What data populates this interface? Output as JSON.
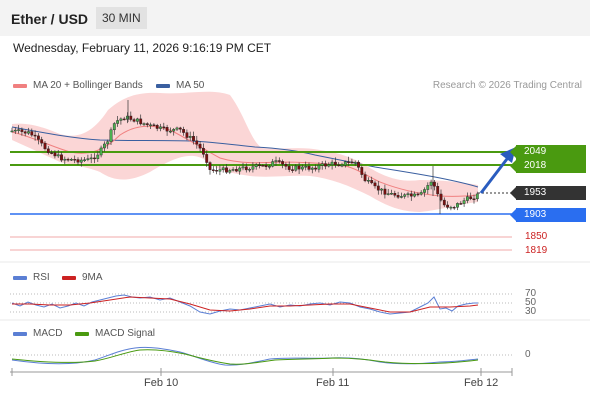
{
  "header": {
    "title": "Ether / USD",
    "timeframe": "30 MIN"
  },
  "datetime": "Wednesday, February 11, 2026 9:16:19 PM CET",
  "legend": {
    "ma20_label": "MA 20 + Bollinger Bands",
    "ma50_label": "MA 50",
    "research": "Research © 2026 Trading Central"
  },
  "levels": {
    "r2": "2049",
    "r1": "2018",
    "last": "1953",
    "s1": "1903",
    "s2": "1850",
    "s3": "1819"
  },
  "rsi": {
    "label": "RSI",
    "ma_label": "9MA",
    "ticks": [
      "70",
      "50",
      "30"
    ]
  },
  "macd": {
    "label": "MACD",
    "signal_label": "MACD Signal",
    "tick": "0"
  },
  "x_axis": [
    "Feb 10",
    "Feb 11",
    "Feb 12"
  ],
  "colors": {
    "ma20": "#f08080",
    "ma50": "#3a5fa0",
    "bollinger": "#fbd6d6",
    "resistance": "#4a9a10",
    "support": "#2a6ef0",
    "support_red": "#e05050",
    "last_price": "#333333",
    "rsi": "#5b7fd4",
    "rsi_ma": "#cc2222",
    "macd": "#5b7fd4",
    "macd_signal": "#4a9a10"
  }
}
